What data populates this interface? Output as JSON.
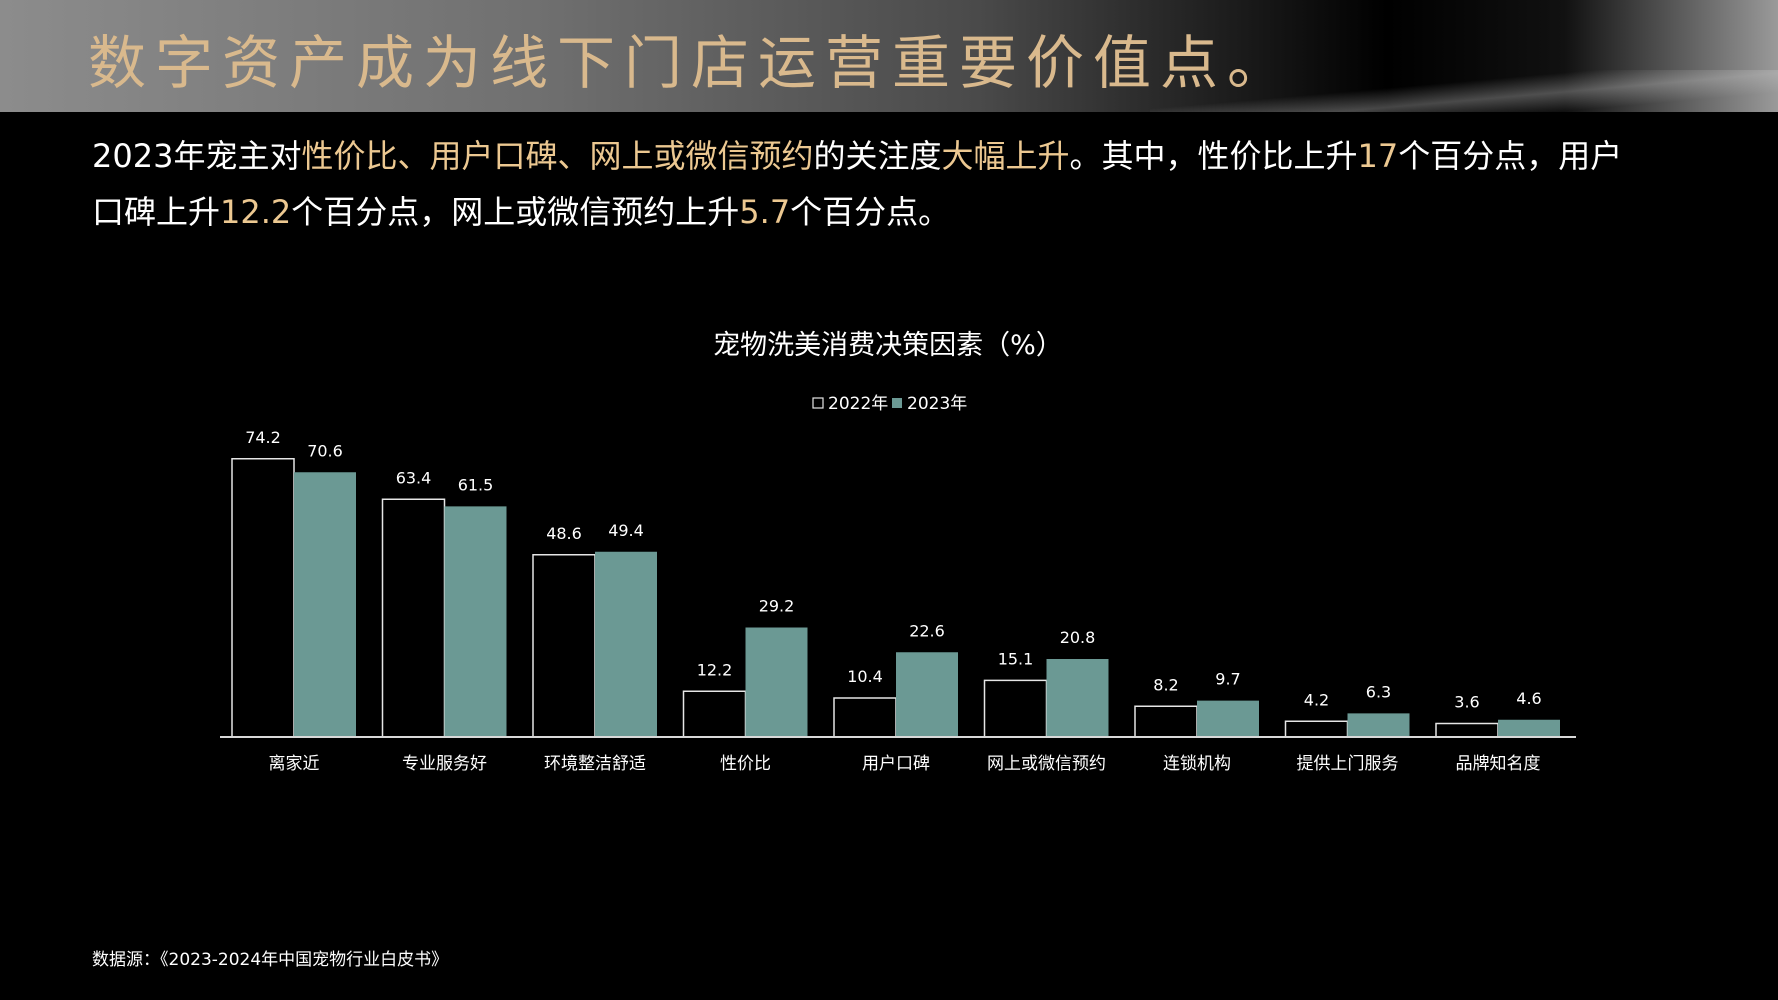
{
  "header": {
    "title": "数字资产成为线下门店运营重要价值点。"
  },
  "summary": {
    "line1_a": "2023年宠主对",
    "line1_hl1": "性价比、用户口碑、网上或微信预约",
    "line1_b": "的关注度",
    "line1_hl2": "大幅上升",
    "line1_c": "。其中，性价比上升",
    "line1_hl3": "17",
    "line1_d": "个百分点，用户",
    "line2_a": "口碑上升",
    "line2_hl1": "12.2",
    "line2_b": "个百分点，网上或微信预约上升",
    "line2_hl2": "5.7",
    "line2_c": "个百分点。"
  },
  "source": "数据源：《2023-2024年中国宠物行业白皮书》",
  "colors": {
    "accent": "#ecc891",
    "title": "#d9b98d",
    "series_2023": "#6b9994",
    "series_2022_outline": "#ffffff",
    "background": "#000000"
  },
  "chart_data": {
    "type": "bar",
    "title": "宠物洗美消费决策因素（%）",
    "xlabel": "",
    "ylabel": "",
    "ylim": [
      0,
      80
    ],
    "grid": false,
    "legend_position": "top-center",
    "categories": [
      "离家近",
      "专业服务好",
      "环境整洁舒适",
      "性价比",
      "用户口碑",
      "网上或微信预约",
      "连锁机构",
      "提供上门服务",
      "品牌知名度"
    ],
    "series": [
      {
        "name": "2022年",
        "style": "outline",
        "values": [
          74.2,
          63.4,
          48.6,
          12.2,
          10.4,
          15.1,
          8.2,
          4.2,
          3.6
        ]
      },
      {
        "name": "2023年",
        "style": "filled",
        "values": [
          70.6,
          61.5,
          49.4,
          29.2,
          22.6,
          20.8,
          9.7,
          6.3,
          4.6
        ]
      }
    ]
  }
}
